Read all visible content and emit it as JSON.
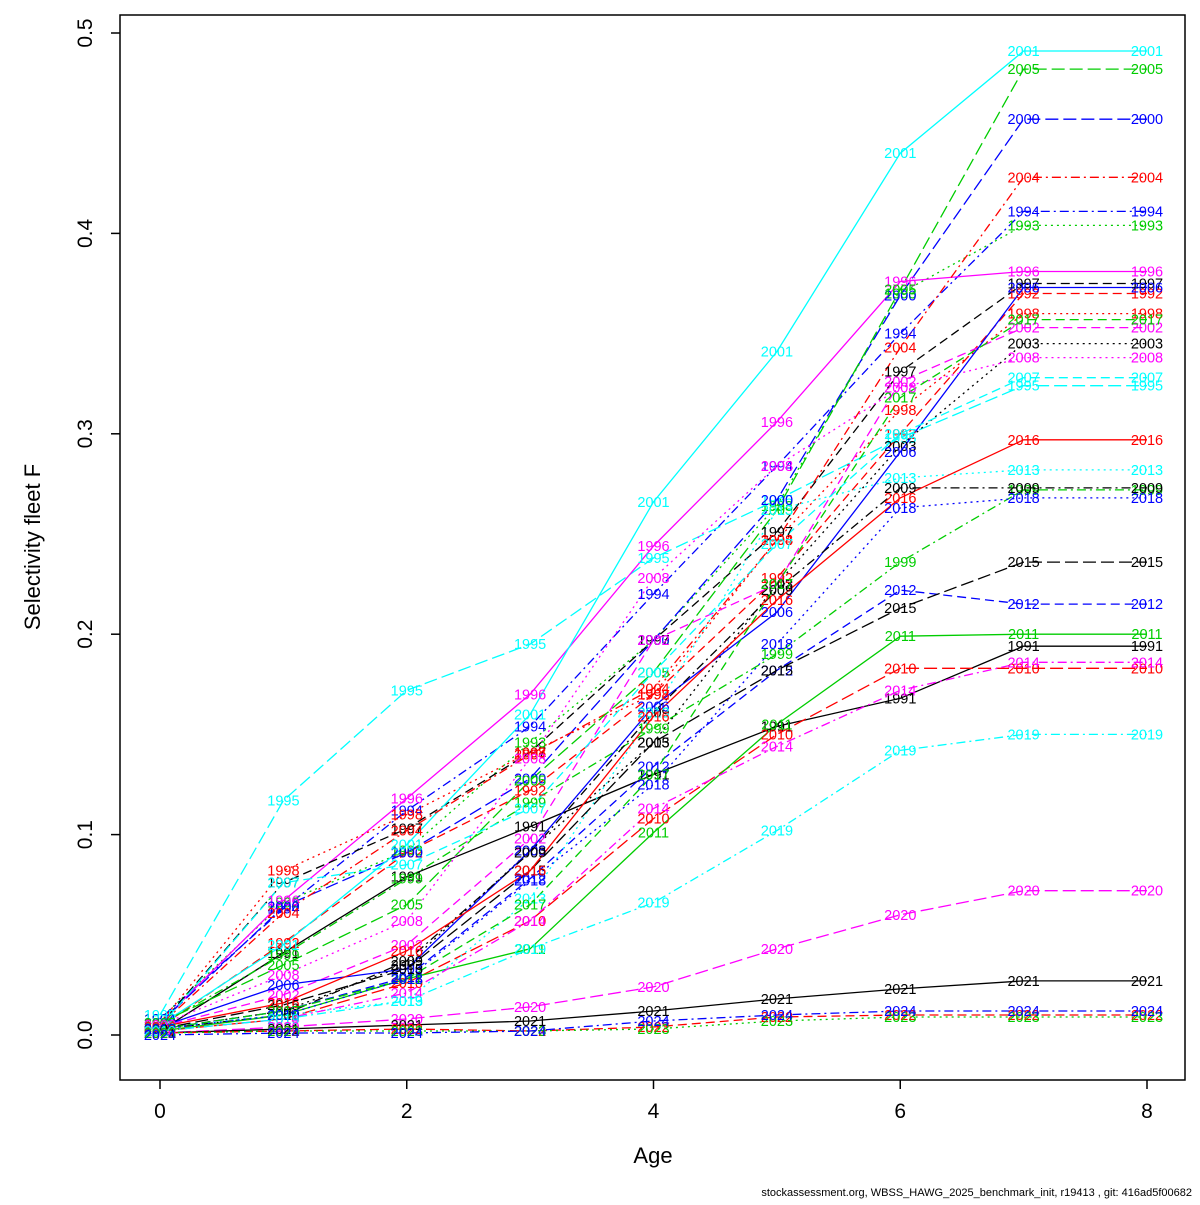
{
  "page": {
    "background": "#ffffff"
  },
  "footer": {
    "text": "stockassessment.org, WBSS_HAWG_2025_benchmark_init, r19413 , git: 416ad5f00682"
  },
  "chart_data": {
    "type": "line",
    "title": "",
    "xlabel": "Age",
    "ylabel": "Selectivity fleet F",
    "x": [
      0,
      1,
      2,
      3,
      4,
      5,
      6,
      7,
      8
    ],
    "xlim": [
      -0.35,
      8.35
    ],
    "ylim": [
      0.0,
      0.5
    ],
    "x_tick_labels": [
      "0",
      "2",
      "4",
      "6",
      "8"
    ],
    "x_tick_values": [
      0,
      2,
      4,
      6,
      8
    ],
    "y_tick_labels": [
      "0.0",
      "0.1",
      "0.2",
      "0.3",
      "0.4",
      "0.5"
    ],
    "y_tick_values": [
      0.0,
      0.1,
      0.2,
      0.3,
      0.4,
      0.5
    ],
    "grid": false,
    "legend_position": "none (each vertex labeled with its year)",
    "point_label_style": "year text at every age, colored as its series",
    "palette": {
      "black": "#000000",
      "red": "#FF0000",
      "green": "#00CD00",
      "blue": "#0000FF",
      "cyan": "#00FFFF",
      "magenta": "#FF00FF"
    },
    "series": [
      {
        "name": "1991",
        "color": "#000000",
        "linetype": "solid",
        "values": [
          0.002,
          0.041,
          0.079,
          0.104,
          0.13,
          0.154,
          0.168,
          0.194,
          0.194
        ]
      },
      {
        "name": "1992",
        "color": "#FF0000",
        "linetype": "dashed",
        "values": [
          0.004,
          0.046,
          0.091,
          0.122,
          0.17,
          0.228,
          0.3,
          0.37,
          0.37
        ]
      },
      {
        "name": "1993",
        "color": "#00CD00",
        "linetype": "dotted",
        "values": [
          0.008,
          0.066,
          0.092,
          0.146,
          0.197,
          0.264,
          0.37,
          0.404,
          0.404
        ]
      },
      {
        "name": "1994",
        "color": "#0000FF",
        "linetype": "dotdash",
        "values": [
          0.008,
          0.063,
          0.112,
          0.154,
          0.22,
          0.284,
          0.35,
          0.411,
          0.411
        ]
      },
      {
        "name": "1995",
        "color": "#00FFFF",
        "linetype": "longdash",
        "values": [
          0.01,
          0.117,
          0.172,
          0.195,
          0.238,
          0.267,
          0.298,
          0.324,
          0.324
        ]
      },
      {
        "name": "1996",
        "color": "#FF00FF",
        "linetype": "solid",
        "values": [
          0.006,
          0.067,
          0.118,
          0.17,
          0.244,
          0.306,
          0.376,
          0.381,
          0.381
        ]
      },
      {
        "name": "1997",
        "color": "#000000",
        "linetype": "dashed",
        "values": [
          0.005,
          0.076,
          0.103,
          0.141,
          0.197,
          0.251,
          0.331,
          0.375,
          0.375
        ]
      },
      {
        "name": "1998",
        "color": "#FF0000",
        "linetype": "dotted",
        "values": [
          0.006,
          0.082,
          0.11,
          0.141,
          0.17,
          0.247,
          0.312,
          0.36,
          0.36
        ]
      },
      {
        "name": "1999",
        "color": "#00CD00",
        "linetype": "dotdash",
        "values": [
          0.005,
          0.04,
          0.078,
          0.116,
          0.153,
          0.19,
          0.236,
          0.272,
          0.272
        ]
      },
      {
        "name": "2000",
        "color": "#0000FF",
        "linetype": "longdash",
        "values": [
          0.006,
          0.064,
          0.091,
          0.128,
          0.197,
          0.267,
          0.369,
          0.457,
          0.457
        ]
      },
      {
        "name": "2001",
        "color": "#00FFFF",
        "linetype": "solid",
        "values": [
          0.005,
          0.045,
          0.095,
          0.16,
          0.266,
          0.341,
          0.44,
          0.491,
          0.491
        ]
      },
      {
        "name": "2002",
        "color": "#FF00FF",
        "linetype": "dashed",
        "values": [
          0.004,
          0.02,
          0.045,
          0.098,
          0.197,
          0.225,
          0.326,
          0.353,
          0.353
        ]
      },
      {
        "name": "2003",
        "color": "#000000",
        "linetype": "dotted",
        "values": [
          0.003,
          0.012,
          0.035,
          0.092,
          0.146,
          0.225,
          0.294,
          0.345,
          0.345
        ]
      },
      {
        "name": "2004",
        "color": "#FF0000",
        "linetype": "dotdash",
        "values": [
          0.005,
          0.061,
          0.102,
          0.14,
          0.173,
          0.247,
          0.343,
          0.428,
          0.428
        ]
      },
      {
        "name": "2005",
        "color": "#00CD00",
        "linetype": "longdash",
        "values": [
          0.006,
          0.035,
          0.065,
          0.127,
          0.181,
          0.262,
          0.372,
          0.482,
          0.482
        ]
      },
      {
        "name": "2006",
        "color": "#0000FF",
        "linetype": "solid",
        "values": [
          0.004,
          0.025,
          0.033,
          0.092,
          0.164,
          0.211,
          0.291,
          0.373,
          0.373
        ]
      },
      {
        "name": "2007",
        "color": "#00FFFF",
        "linetype": "dashed",
        "values": [
          0.004,
          0.076,
          0.085,
          0.113,
          0.181,
          0.245,
          0.3,
          0.328,
          0.328
        ]
      },
      {
        "name": "2008",
        "color": "#FF00FF",
        "linetype": "dotted",
        "values": [
          0.005,
          0.03,
          0.057,
          0.138,
          0.228,
          0.284,
          0.323,
          0.338,
          0.338
        ]
      },
      {
        "name": "2009",
        "color": "#000000",
        "linetype": "dotdash",
        "values": [
          0.003,
          0.01,
          0.037,
          0.091,
          0.161,
          0.222,
          0.273,
          0.273,
          0.273
        ]
      },
      {
        "name": "2010",
        "color": "#FF0000",
        "linetype": "longdash",
        "values": [
          0.002,
          0.008,
          0.026,
          0.057,
          0.108,
          0.15,
          0.183,
          0.183,
          0.183
        ]
      },
      {
        "name": "2011",
        "color": "#00CD00",
        "linetype": "solid",
        "values": [
          0.002,
          0.01,
          0.028,
          0.043,
          0.101,
          0.155,
          0.199,
          0.2,
          0.2
        ]
      },
      {
        "name": "2012",
        "color": "#0000FF",
        "linetype": "dashed",
        "values": [
          0.003,
          0.012,
          0.029,
          0.078,
          0.134,
          0.182,
          0.222,
          0.215,
          0.215
        ]
      },
      {
        "name": "2013",
        "color": "#00FFFF",
        "linetype": "dotted",
        "values": [
          0.004,
          0.01,
          0.017,
          0.068,
          0.161,
          0.262,
          0.278,
          0.282,
          0.282
        ]
      },
      {
        "name": "2014",
        "color": "#FF00FF",
        "linetype": "dotdash",
        "values": [
          0.002,
          0.008,
          0.021,
          0.057,
          0.113,
          0.144,
          0.172,
          0.186,
          0.186
        ]
      },
      {
        "name": "2015",
        "color": "#000000",
        "linetype": "longdash",
        "values": [
          0.003,
          0.015,
          0.033,
          0.082,
          0.146,
          0.182,
          0.213,
          0.236,
          0.236
        ]
      },
      {
        "name": "2016",
        "color": "#FF0000",
        "linetype": "solid",
        "values": [
          0.004,
          0.016,
          0.042,
          0.082,
          0.159,
          0.217,
          0.268,
          0.297,
          0.297
        ]
      },
      {
        "name": "2017",
        "color": "#00CD00",
        "linetype": "dashed",
        "values": [
          0.003,
          0.012,
          0.028,
          0.065,
          0.13,
          0.225,
          0.318,
          0.357,
          0.357
        ]
      },
      {
        "name": "2018",
        "color": "#0000FF",
        "linetype": "dotted",
        "values": [
          0.003,
          0.01,
          0.028,
          0.077,
          0.125,
          0.195,
          0.263,
          0.268,
          0.268
        ]
      },
      {
        "name": "2019",
        "color": "#00FFFF",
        "linetype": "dotdash",
        "values": [
          0.002,
          0.008,
          0.017,
          0.043,
          0.066,
          0.102,
          0.142,
          0.15,
          0.15
        ]
      },
      {
        "name": "2020",
        "color": "#FF00FF",
        "linetype": "longdash",
        "values": [
          0.001,
          0.004,
          0.008,
          0.014,
          0.024,
          0.043,
          0.06,
          0.072,
          0.072
        ]
      },
      {
        "name": "2021",
        "color": "#000000",
        "linetype": "solid",
        "values": [
          0.001,
          0.003,
          0.005,
          0.007,
          0.012,
          0.018,
          0.023,
          0.027,
          0.027
        ]
      },
      {
        "name": "2022",
        "color": "#FF0000",
        "linetype": "dashed",
        "values": [
          0.001,
          0.002,
          0.003,
          0.002,
          0.004,
          0.009,
          0.01,
          0.01,
          0.01
        ]
      },
      {
        "name": "2023",
        "color": "#00CD00",
        "linetype": "dotted",
        "values": [
          0.001,
          0.002,
          0.002,
          0.002,
          0.003,
          0.007,
          0.009,
          0.009,
          0.009
        ]
      },
      {
        "name": "2024",
        "color": "#0000FF",
        "linetype": "dotdash",
        "values": [
          0.0,
          0.001,
          0.001,
          0.002,
          0.007,
          0.01,
          0.012,
          0.012,
          0.012
        ]
      }
    ]
  }
}
